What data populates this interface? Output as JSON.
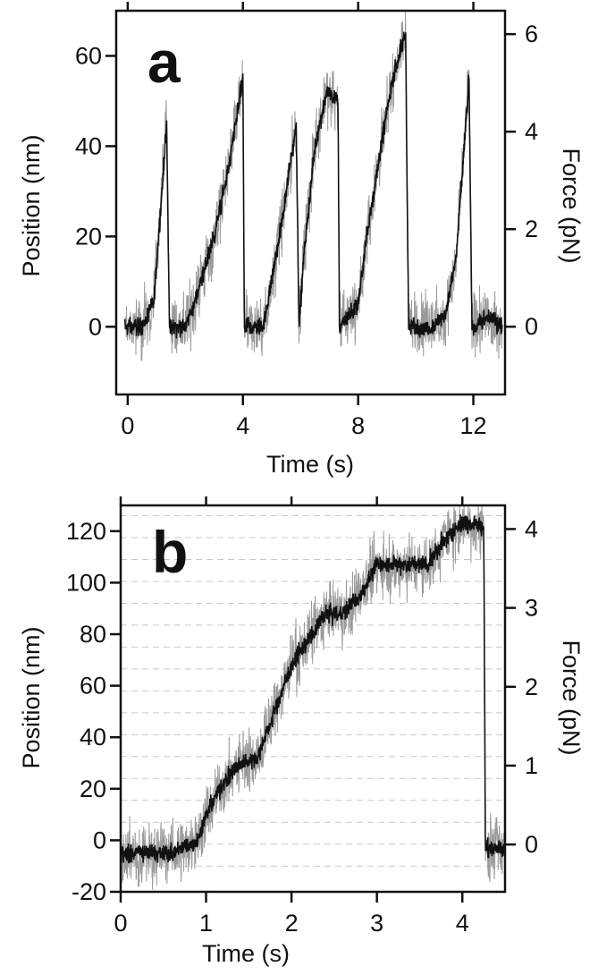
{
  "chart_data": [
    {
      "panel": "a",
      "type": "line",
      "xlabel": "Time (s)",
      "ylabel": "Position (nm)",
      "y2label": "Force (pN)",
      "xlim": [
        -0.4,
        13.1
      ],
      "ylim": [
        -15,
        70
      ],
      "y2lim": [
        -1.39,
        6.48
      ],
      "xticks": [
        0,
        4,
        8,
        12
      ],
      "xtick_labels": [
        "0",
        "4",
        "8",
        "12"
      ],
      "yticks": [
        0,
        20,
        40,
        60
      ],
      "ytick_labels": [
        "0",
        "20",
        "40",
        "60"
      ],
      "y2ticks": [
        0,
        2,
        4,
        6
      ],
      "y2tick_labels": [
        "0",
        "2",
        "4",
        "6"
      ],
      "grid": false,
      "series": [
        {
          "raw_color": "#9a9a9a",
          "filtered_color": "#111111",
          "x": [
            -0.1,
            0.5,
            0.9,
            1.35,
            1.45,
            2.0,
            2.3,
            3.0,
            3.5,
            4.0,
            4.05,
            4.7,
            5.0,
            5.4,
            5.85,
            5.95,
            6.1,
            6.5,
            6.9,
            7.3,
            7.35,
            8.0,
            8.3,
            8.8,
            9.2,
            9.65,
            9.75,
            10.5,
            11.0,
            11.4,
            11.85,
            11.95,
            12.5,
            13.0
          ],
          "y": [
            0,
            0,
            5,
            45,
            0,
            0,
            5,
            20,
            35,
            55,
            0,
            0,
            10,
            25,
            45,
            0,
            15,
            40,
            52,
            50,
            0,
            5,
            20,
            40,
            55,
            65,
            0,
            0,
            2,
            15,
            55,
            0,
            2,
            0
          ]
        }
      ]
    },
    {
      "panel": "b",
      "type": "line",
      "xlabel": "Time (s)",
      "ylabel": "Position (nm)",
      "y2label": "Force (pN)",
      "xlim": [
        0,
        4.5
      ],
      "ylim": [
        -20,
        130
      ],
      "y2lim": [
        -0.6,
        4.3
      ],
      "xticks": [
        0,
        1,
        2,
        3,
        4
      ],
      "xtick_labels": [
        "0",
        "1",
        "2",
        "3",
        "4"
      ],
      "yticks": [
        -20,
        0,
        20,
        40,
        60,
        80,
        100,
        120
      ],
      "ytick_labels": [
        "-20",
        "0",
        "20",
        "40",
        "60",
        "80",
        "100",
        "120"
      ],
      "y2ticks": [
        0,
        1,
        2,
        3,
        4
      ],
      "y2tick_labels": [
        "0",
        "1",
        "2",
        "3",
        "4"
      ],
      "grid": true,
      "series": [
        {
          "raw_color": "#9a9a9a",
          "filtered_color": "#111111",
          "x": [
            0.0,
            0.3,
            0.6,
            0.9,
            1.0,
            1.2,
            1.4,
            1.6,
            1.8,
            2.0,
            2.2,
            2.4,
            2.6,
            2.8,
            3.0,
            3.3,
            3.6,
            3.8,
            4.0,
            4.25,
            4.27,
            4.5
          ],
          "y": [
            -5,
            -5,
            -5,
            0,
            10,
            22,
            30,
            32,
            50,
            68,
            78,
            88,
            88,
            95,
            107,
            107,
            107,
            117,
            123,
            122,
            -3,
            -3
          ]
        }
      ]
    }
  ]
}
